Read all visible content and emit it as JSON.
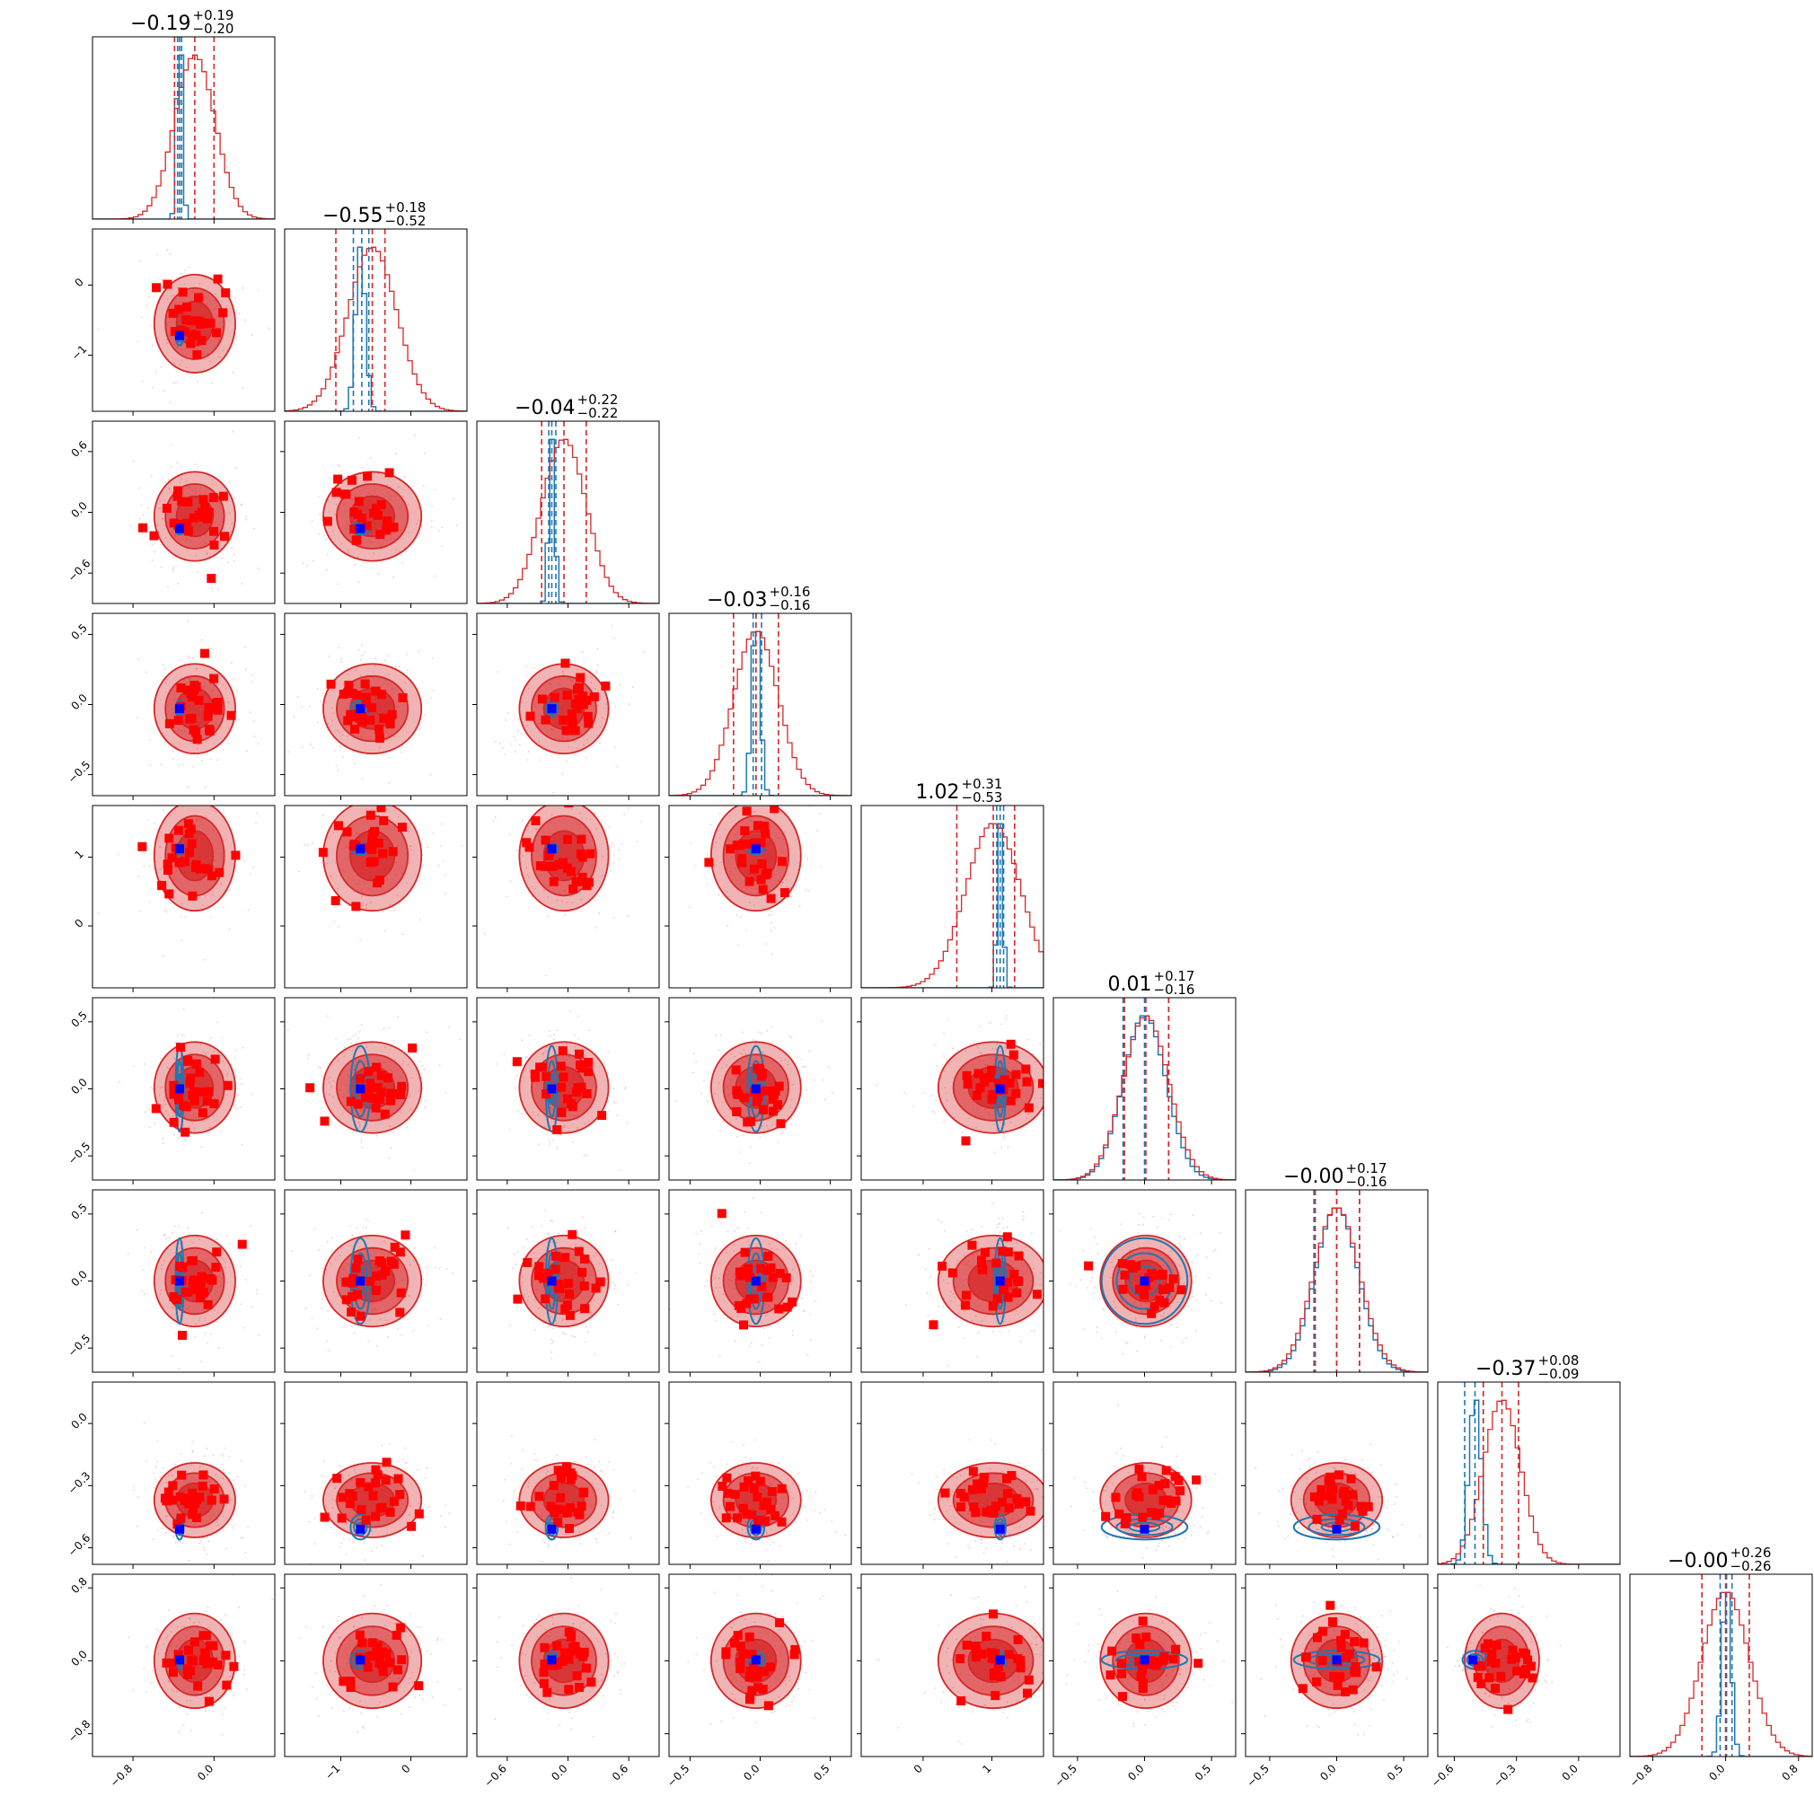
{
  "chart_data": {
    "type": "corner",
    "n_params": 9,
    "colors": {
      "posterior_a": "#d62728",
      "posterior_b": "#1f77b4",
      "truth_marker": "#0000ff",
      "scatter_marker": "#ff0000"
    },
    "titles": [
      {
        "value": "−0.19",
        "plus": "+0.19",
        "minus": "−0.20"
      },
      {
        "value": "−0.55",
        "plus": "+0.18",
        "minus": "−0.52"
      },
      {
        "value": "−0.04",
        "plus": "+0.22",
        "minus": "−0.22"
      },
      {
        "value": "−0.03",
        "plus": "+0.16",
        "minus": "−0.16"
      },
      {
        "value": "1.02",
        "plus": "+0.31",
        "minus": "−0.53"
      },
      {
        "value": "0.01",
        "plus": "+0.17",
        "minus": "−0.16"
      },
      {
        "value": "−0.00",
        "plus": "+0.17",
        "minus": "−0.16"
      },
      {
        "value": "−0.37",
        "plus": "+0.08",
        "minus": "−0.09"
      },
      {
        "value": "−0.00",
        "plus": "+0.26",
        "minus": "−0.26"
      }
    ],
    "axes": [
      {
        "range": [
          -1.2,
          0.6
        ],
        "ticks": [
          -0.8,
          0.0
        ],
        "tick_labels": [
          "−0.8",
          "0.0"
        ]
      },
      {
        "range": [
          -1.8,
          0.8
        ],
        "ticks": [
          -1,
          0
        ],
        "tick_labels": [
          "−1",
          "0"
        ]
      },
      {
        "range": [
          -0.9,
          0.9
        ],
        "ticks": [
          -0.6,
          0.0,
          0.6
        ],
        "tick_labels": [
          "−0.6",
          "0.0",
          "0.6"
        ]
      },
      {
        "range": [
          -0.65,
          0.65
        ],
        "ticks": [
          -0.5,
          0.0,
          0.5
        ],
        "tick_labels": [
          "−0.5",
          "0.0",
          "0.5"
        ]
      },
      {
        "range": [
          -0.9,
          1.75
        ],
        "ticks": [
          0,
          1
        ],
        "tick_labels": [
          "0",
          "1"
        ]
      },
      {
        "range": [
          -0.68,
          0.68
        ],
        "ticks": [
          -0.5,
          0.0,
          0.5
        ],
        "tick_labels": [
          "−0.5",
          "0.0",
          "0.5"
        ]
      },
      {
        "range": [
          -0.68,
          0.68
        ],
        "ticks": [
          -0.5,
          0.0,
          0.5
        ],
        "tick_labels": [
          "−0.5",
          "0.0",
          "0.5"
        ]
      },
      {
        "range": [
          -0.68,
          0.2
        ],
        "ticks": [
          -0.6,
          -0.3,
          0.0
        ],
        "tick_labels": [
          "−0.6",
          "−0.3",
          "0.0"
        ]
      },
      {
        "range": [
          -1.05,
          0.95
        ],
        "ticks": [
          -0.8,
          0.0,
          0.8
        ],
        "tick_labels": [
          "−0.8",
          "0.0",
          "0.8"
        ]
      }
    ],
    "quantiles_a": [
      [
        -0.39,
        -0.19,
        0.0
      ],
      [
        -1.07,
        -0.55,
        -0.37
      ],
      [
        -0.26,
        -0.04,
        0.18
      ],
      [
        -0.19,
        -0.03,
        0.13
      ],
      [
        0.49,
        1.02,
        1.33
      ],
      [
        -0.15,
        0.01,
        0.18
      ],
      [
        -0.16,
        -0.0,
        0.17
      ],
      [
        -0.46,
        -0.37,
        -0.29
      ],
      [
        -0.26,
        -0.0,
        0.26
      ]
    ],
    "quantiles_b": [
      [
        -0.36,
        -0.34,
        -0.32
      ],
      [
        -0.82,
        -0.7,
        -0.6
      ],
      [
        -0.19,
        -0.16,
        -0.12
      ],
      [
        -0.05,
        -0.03,
        0.01
      ],
      [
        1.07,
        1.12,
        1.17
      ],
      [
        -0.16,
        0.0,
        0.18
      ],
      [
        -0.17,
        0.0,
        0.17
      ],
      [
        -0.55,
        -0.5,
        -0.46
      ],
      [
        -0.06,
        0.01,
        0.07
      ]
    ],
    "centers_a": [
      -0.19,
      -0.55,
      -0.04,
      -0.03,
      1.02,
      0.01,
      0.0,
      -0.37,
      0.0
    ],
    "sigmas_a": [
      0.2,
      0.35,
      0.22,
      0.16,
      0.4,
      0.17,
      0.17,
      0.09,
      0.26
    ],
    "centers_b": [
      -0.34,
      -0.72,
      -0.16,
      -0.03,
      1.12,
      0.0,
      0.0,
      -0.5,
      0.01
    ],
    "sigmas_b": [
      0.02,
      0.07,
      0.03,
      0.03,
      0.04,
      0.16,
      0.16,
      0.03,
      0.05
    ],
    "truth": [
      -0.34,
      -0.72,
      -0.16,
      -0.03,
      1.12,
      0.0,
      0.0,
      -0.51,
      0.01
    ]
  }
}
